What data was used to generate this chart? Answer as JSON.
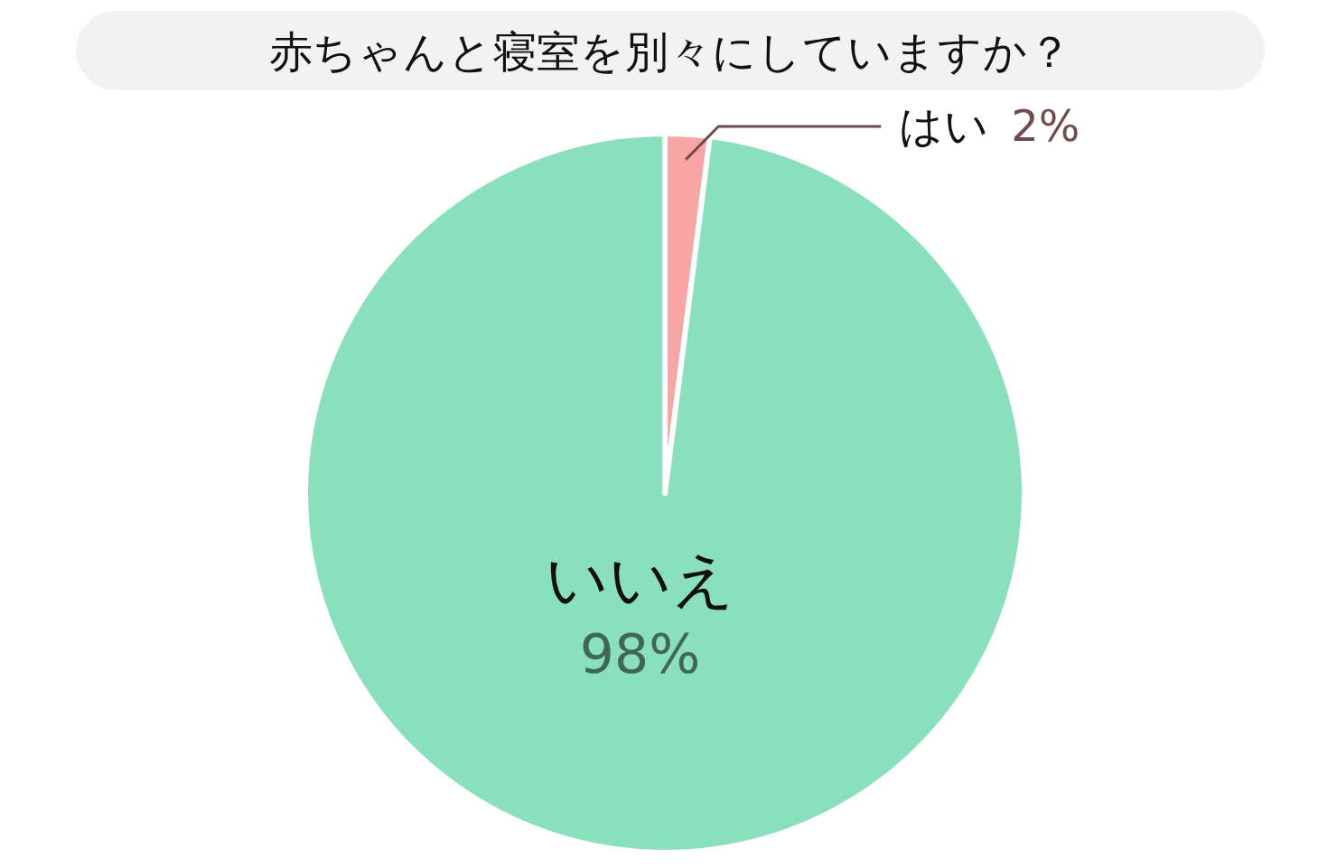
{
  "chart_data": {
    "type": "pie",
    "title": "赤ちゃんと寝室を別々にしていますか？",
    "categories": [
      "はい",
      "いいえ"
    ],
    "values": [
      2,
      98
    ],
    "value_labels": [
      "2%",
      "98%"
    ],
    "colors": [
      "#f7a5a5",
      "#8ae0bc"
    ]
  }
}
